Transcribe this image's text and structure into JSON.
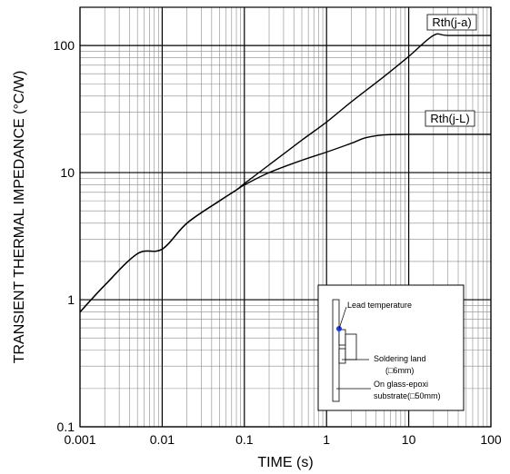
{
  "chart_data": {
    "type": "line",
    "xlabel": "TIME (s)",
    "ylabel": "TRANSIENT THERMAL IMPEDANCE  (°C/W)",
    "x_scale": "log",
    "y_scale": "log",
    "xlim": [
      0.001,
      100
    ],
    "ylim": [
      0.1,
      200
    ],
    "x_ticks": [
      {
        "value": 0.001,
        "label": "0.001"
      },
      {
        "value": 0.01,
        "label": "0.01"
      },
      {
        "value": 0.1,
        "label": "0.1"
      },
      {
        "value": 1,
        "label": "1"
      },
      {
        "value": 10,
        "label": "10"
      },
      {
        "value": 100,
        "label": "100"
      }
    ],
    "y_ticks": [
      {
        "value": 0.1,
        "label": "0.1"
      },
      {
        "value": 1,
        "label": "1"
      },
      {
        "value": 10,
        "label": "10"
      },
      {
        "value": 100,
        "label": "100"
      }
    ],
    "grid": true,
    "series": [
      {
        "name": "Rth(j-a)",
        "x": [
          0.001,
          0.002,
          0.005,
          0.01,
          0.02,
          0.05,
          0.08,
          0.1,
          0.2,
          0.5,
          1,
          2,
          5,
          10,
          20,
          30,
          100
        ],
        "y": [
          0.8,
          1.3,
          2.3,
          2.5,
          4.0,
          6.0,
          7.3,
          8.2,
          11.5,
          18,
          25,
          36,
          57,
          82,
          120,
          120,
          120
        ]
      },
      {
        "name": "Rth(j-L)",
        "x": [
          0.001,
          0.002,
          0.005,
          0.01,
          0.02,
          0.05,
          0.08,
          0.1,
          0.2,
          0.5,
          1,
          2,
          3,
          5,
          10,
          100
        ],
        "y": [
          0.8,
          1.3,
          2.3,
          2.5,
          4.0,
          6.0,
          7.3,
          8.0,
          10,
          12.5,
          14.5,
          17,
          18.8,
          19.8,
          20,
          20
        ]
      }
    ],
    "inset": {
      "lead_temperature": "Lead temperature",
      "soldering_land_1": "Soldering land",
      "soldering_land_2": "(□6mm)",
      "substrate_1": "On glass-epoxi",
      "substrate_2": "substrate(□50mm)"
    }
  }
}
